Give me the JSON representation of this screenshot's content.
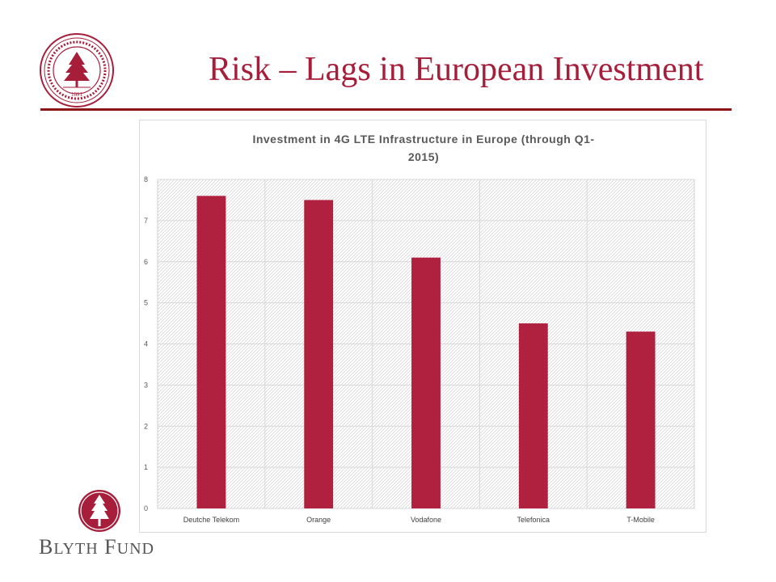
{
  "slide": {
    "title": "Risk – Lags in European Investment",
    "title_color": "#a61e3a",
    "rule_color": "#8c1515",
    "seal_year": "1891",
    "logo_text": "Blyth Fund"
  },
  "chart_data": {
    "type": "bar",
    "title_lines": [
      "Investment in 4G LTE Infrastructure in Europe (through Q1-",
      "2015)"
    ],
    "categories": [
      "Deutche Telekom",
      "Orange",
      "Vodafone",
      "Telefonica",
      "T-Mobile"
    ],
    "values": [
      7.6,
      7.5,
      6.1,
      4.5,
      4.3
    ],
    "ylim": [
      0,
      8
    ],
    "yticks": [
      0,
      1,
      2,
      3,
      4,
      5,
      6,
      7,
      8
    ],
    "xlabel": "",
    "ylabel": "",
    "grid": true,
    "bar_color": "#b0203f",
    "legend": "none"
  }
}
